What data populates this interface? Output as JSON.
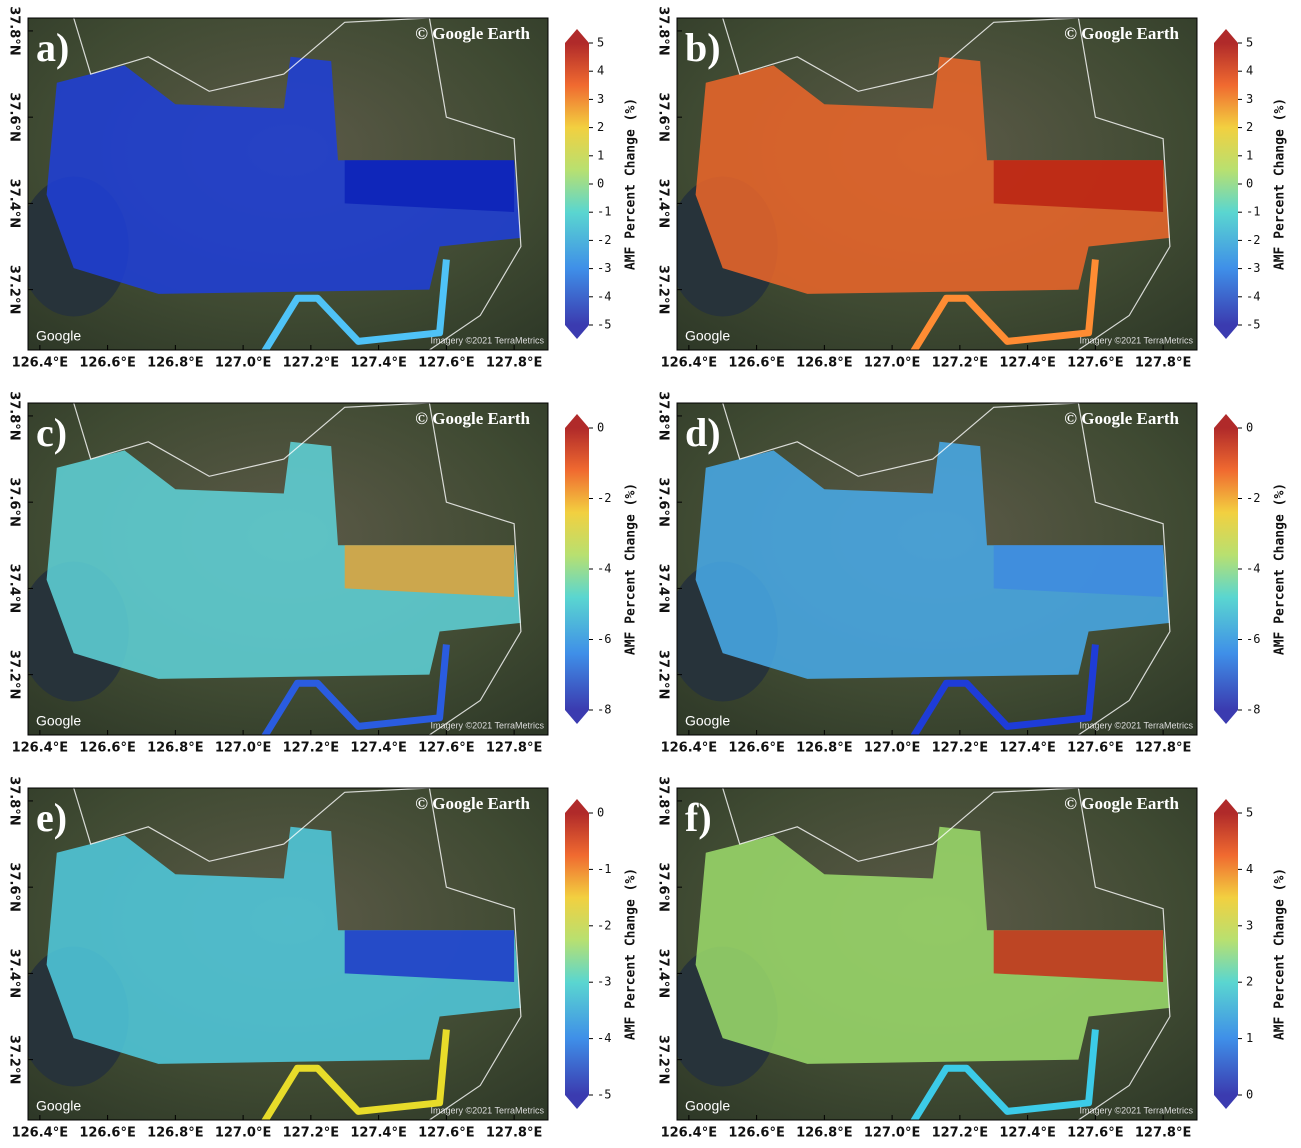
{
  "panels": [
    {
      "label": "a)",
      "watermark": "© Google Earth",
      "logo": "Google",
      "imagery": "Imagery ©2021 TerraMetrics",
      "colorbar_label": "AMF Percent Change (%)",
      "clim": [
        -5,
        5
      ],
      "colorbar_ticks": [
        5,
        4,
        3,
        2,
        1,
        0,
        -1,
        -2,
        -3,
        -4,
        -5
      ],
      "swath_color": "#1f3fd6",
      "east_color": "#0a1fb8",
      "road_color": "#4fc3f7",
      "xlim": [
        126.365,
        127.9
      ],
      "ylim": [
        37.06,
        37.83
      ],
      "xticks": [
        {
          "value": 126.4,
          "label": "126.4°E"
        },
        {
          "value": 126.6,
          "label": "126.6°E"
        },
        {
          "value": 126.8,
          "label": "126.8°E"
        },
        {
          "value": 127.0,
          "label": "127.0°E"
        },
        {
          "value": 127.2,
          "label": "127.2°E"
        },
        {
          "value": 127.4,
          "label": "127.4°E"
        },
        {
          "value": 127.6,
          "label": "127.6°E"
        },
        {
          "value": 127.8,
          "label": "127.8°E"
        }
      ],
      "yticks": [
        {
          "value": 37.8,
          "label": "37.8°N"
        },
        {
          "value": 37.6,
          "label": "37.6°N"
        },
        {
          "value": 37.4,
          "label": "37.4°N"
        },
        {
          "value": 37.2,
          "label": "37.2°N"
        }
      ]
    },
    {
      "label": "b)",
      "watermark": "© Google Earth",
      "logo": "Google",
      "imagery": "Imagery ©2021 TerraMetrics",
      "colorbar_label": "AMF Percent Change (%)",
      "clim": [
        -5,
        5
      ],
      "colorbar_ticks": [
        5,
        4,
        3,
        2,
        1,
        0,
        -1,
        -2,
        -3,
        -4,
        -5
      ],
      "swath_color": "#e8652a",
      "east_color": "#b81e12",
      "road_color": "#ff8c33",
      "xlim": [
        126.365,
        127.9
      ],
      "ylim": [
        37.06,
        37.83
      ],
      "xticks": [
        {
          "value": 126.4,
          "label": "126.4°E"
        },
        {
          "value": 126.6,
          "label": "126.6°E"
        },
        {
          "value": 126.8,
          "label": "126.8°E"
        },
        {
          "value": 127.0,
          "label": "127.0°E"
        },
        {
          "value": 127.2,
          "label": "127.2°E"
        },
        {
          "value": 127.4,
          "label": "127.4°E"
        },
        {
          "value": 127.6,
          "label": "127.6°E"
        },
        {
          "value": 127.8,
          "label": "127.8°E"
        }
      ],
      "yticks": [
        {
          "value": 37.8,
          "label": "37.8°N"
        },
        {
          "value": 37.6,
          "label": "37.6°N"
        },
        {
          "value": 37.4,
          "label": "37.4°N"
        },
        {
          "value": 37.2,
          "label": "37.2°N"
        }
      ]
    },
    {
      "label": "c)",
      "watermark": "© Google Earth",
      "logo": "Google",
      "imagery": "Imagery ©2021 TerraMetrics",
      "colorbar_label": "AMF Percent Change (%)",
      "clim": [
        -8,
        0
      ],
      "colorbar_ticks": [
        0,
        -2,
        -4,
        -6,
        -8
      ],
      "swath_color": "#5fd0d6",
      "east_color": "#e8a030",
      "road_color": "#2a5ce0",
      "xlim": [
        126.365,
        127.9
      ],
      "ylim": [
        37.06,
        37.83
      ],
      "xticks": [
        {
          "value": 126.4,
          "label": "126.4°E"
        },
        {
          "value": 126.6,
          "label": "126.6°E"
        },
        {
          "value": 126.8,
          "label": "126.8°E"
        },
        {
          "value": 127.0,
          "label": "127.0°E"
        },
        {
          "value": 127.2,
          "label": "127.2°E"
        },
        {
          "value": 127.4,
          "label": "127.4°E"
        },
        {
          "value": 127.6,
          "label": "127.6°E"
        },
        {
          "value": 127.8,
          "label": "127.8°E"
        }
      ],
      "yticks": [
        {
          "value": 37.8,
          "label": "37.8°N"
        },
        {
          "value": 37.6,
          "label": "37.6°N"
        },
        {
          "value": 37.4,
          "label": "37.4°N"
        },
        {
          "value": 37.2,
          "label": "37.2°N"
        }
      ]
    },
    {
      "label": "d)",
      "watermark": "© Google Earth",
      "logo": "Google",
      "imagery": "Imagery ©2021 TerraMetrics",
      "colorbar_label": "AMF Percent Change (%)",
      "clim": [
        -8,
        0
      ],
      "colorbar_ticks": [
        0,
        -2,
        -4,
        -6,
        -8
      ],
      "swath_color": "#48a8e6",
      "east_color": "#3f8ae0",
      "road_color": "#1e3cd8",
      "xlim": [
        126.365,
        127.9
      ],
      "ylim": [
        37.06,
        37.83
      ],
      "xticks": [
        {
          "value": 126.4,
          "label": "126.4°E"
        },
        {
          "value": 126.6,
          "label": "126.6°E"
        },
        {
          "value": 126.8,
          "label": "126.8°E"
        },
        {
          "value": 127.0,
          "label": "127.0°E"
        },
        {
          "value": 127.2,
          "label": "127.2°E"
        },
        {
          "value": 127.4,
          "label": "127.4°E"
        },
        {
          "value": 127.6,
          "label": "127.6°E"
        },
        {
          "value": 127.8,
          "label": "127.8°E"
        }
      ],
      "yticks": [
        {
          "value": 37.8,
          "label": "37.8°N"
        },
        {
          "value": 37.6,
          "label": "37.6°N"
        },
        {
          "value": 37.4,
          "label": "37.4°N"
        },
        {
          "value": 37.2,
          "label": "37.2°N"
        }
      ]
    },
    {
      "label": "e)",
      "watermark": "© Google Earth",
      "logo": "Google",
      "imagery": "Imagery ©2021 TerraMetrics",
      "colorbar_label": "AMF Percent Change (%)",
      "clim": [
        -5,
        0
      ],
      "colorbar_ticks": [
        0,
        -1,
        -2,
        -3,
        -4,
        -5
      ],
      "swath_color": "#50c8dc",
      "east_color": "#1a30c8",
      "road_color": "#e8dc2a",
      "xlim": [
        126.365,
        127.9
      ],
      "ylim": [
        37.06,
        37.83
      ],
      "xticks": [
        {
          "value": 126.4,
          "label": "126.4°E"
        },
        {
          "value": 126.6,
          "label": "126.6°E"
        },
        {
          "value": 126.8,
          "label": "126.8°E"
        },
        {
          "value": 127.0,
          "label": "127.0°E"
        },
        {
          "value": 127.2,
          "label": "127.2°E"
        },
        {
          "value": 127.4,
          "label": "127.4°E"
        },
        {
          "value": 127.6,
          "label": "127.6°E"
        },
        {
          "value": 127.8,
          "label": "127.8°E"
        }
      ],
      "yticks": [
        {
          "value": 37.8,
          "label": "37.8°N"
        },
        {
          "value": 37.6,
          "label": "37.6°N"
        },
        {
          "value": 37.4,
          "label": "37.4°N"
        },
        {
          "value": 37.2,
          "label": "37.2°N"
        }
      ]
    },
    {
      "label": "f)",
      "watermark": "© Google Earth",
      "logo": "Google",
      "imagery": "Imagery ©2021 TerraMetrics",
      "colorbar_label": "AMF Percent Change (%)",
      "clim": [
        0,
        5
      ],
      "colorbar_ticks": [
        5,
        4,
        3,
        2,
        1,
        0
      ],
      "swath_color": "#9ad86a",
      "east_color": "#c82414",
      "road_color": "#3ccbe8",
      "xlim": [
        126.365,
        127.9
      ],
      "ylim": [
        37.06,
        37.83
      ],
      "xticks": [
        {
          "value": 126.4,
          "label": "126.4°E"
        },
        {
          "value": 126.6,
          "label": "126.6°E"
        },
        {
          "value": 126.8,
          "label": "126.8°E"
        },
        {
          "value": 127.0,
          "label": "127.0°E"
        },
        {
          "value": 127.2,
          "label": "127.2°E"
        },
        {
          "value": 127.4,
          "label": "127.4°E"
        },
        {
          "value": 127.6,
          "label": "127.6°E"
        },
        {
          "value": 127.8,
          "label": "127.8°E"
        }
      ],
      "yticks": [
        {
          "value": 37.8,
          "label": "37.8°N"
        },
        {
          "value": 37.6,
          "label": "37.6°N"
        },
        {
          "value": 37.4,
          "label": "37.4°N"
        },
        {
          "value": 37.2,
          "label": "37.2°N"
        }
      ]
    }
  ]
}
